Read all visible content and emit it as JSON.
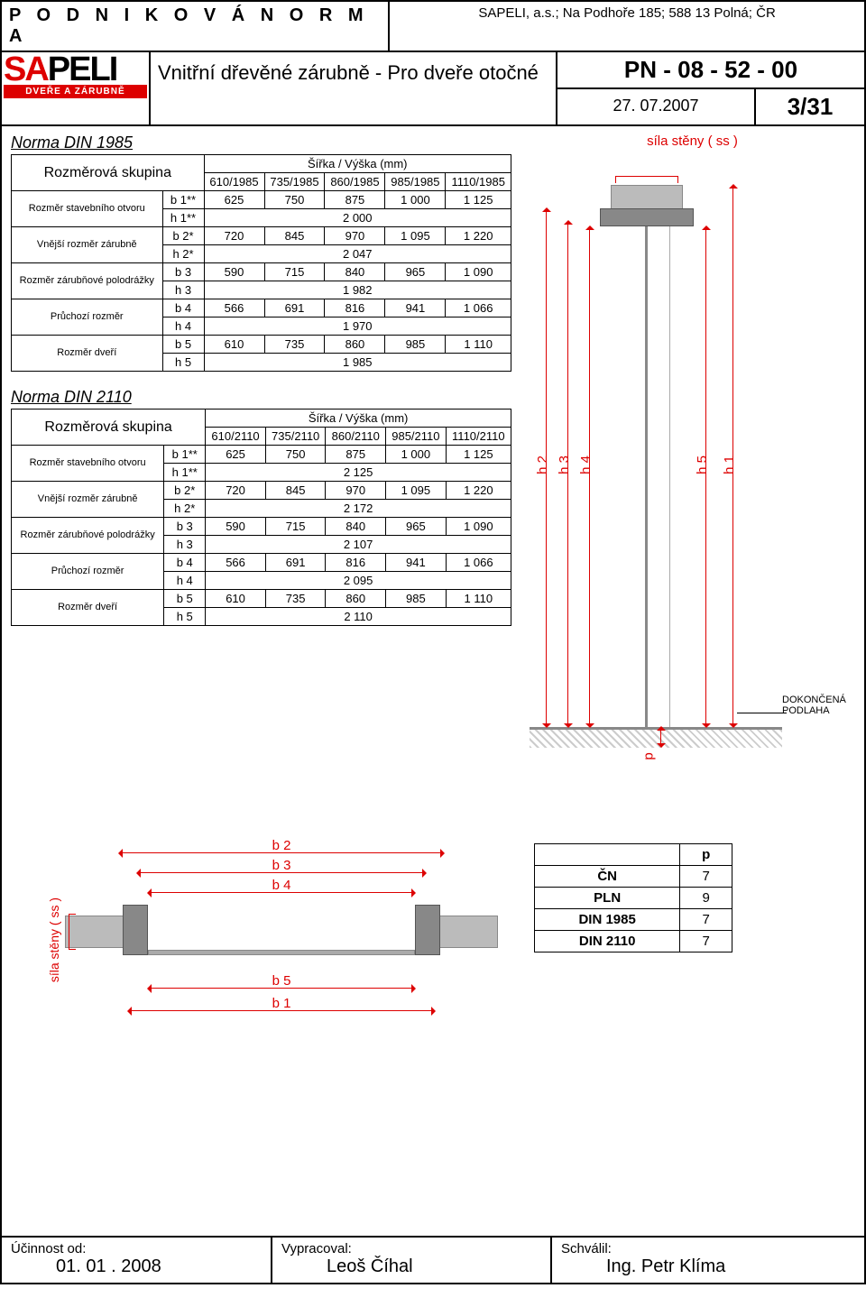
{
  "header": {
    "doc_type": "P O D N I K O V Á  N O R M A",
    "company": "SAPELI, a.s.; Na Podhoře 185; 588 13 Polná; ČR",
    "product_title": "Vnitřní dřevěné zárubně - Pro dveře otočné",
    "pn": "PN - 08 - 52 - 00",
    "date": "27. 07.2007",
    "page": "3/31",
    "logo_text": "SAPELI",
    "logo_sub": "DVEŘE A ZÁRUBNĚ"
  },
  "norms": [
    {
      "title": "Norma DIN 1985",
      "group_label": "Rozměrová skupina",
      "dim_header": "Šířka / Výška (mm)",
      "cols": [
        "610/1985",
        "735/1985",
        "860/1985",
        "985/1985",
        "1110/1985"
      ],
      "rows": [
        {
          "lbl": "Rozměr stavebního otvoru",
          "code": "b 1**",
          "vals": [
            "625",
            "750",
            "875",
            "1 000",
            "1 125"
          ]
        },
        {
          "lbl": "",
          "code": "h 1**",
          "span": "2 000"
        },
        {
          "lbl": "Vnější rozměr zárubně",
          "code": "b 2*",
          "vals": [
            "720",
            "845",
            "970",
            "1 095",
            "1 220"
          ]
        },
        {
          "lbl": "",
          "code": "h 2*",
          "span": "2 047"
        },
        {
          "lbl": "Rozměr zárubňové polodrážky",
          "code": "b 3",
          "vals": [
            "590",
            "715",
            "840",
            "965",
            "1 090"
          ]
        },
        {
          "lbl": "",
          "code": "h 3",
          "span": "1 982"
        },
        {
          "lbl": "Průchozí rozměr",
          "code": "b 4",
          "vals": [
            "566",
            "691",
            "816",
            "941",
            "1 066"
          ]
        },
        {
          "lbl": "",
          "code": "h 4",
          "span": "1 970"
        },
        {
          "lbl": "Rozměr dveří",
          "code": "b 5",
          "vals": [
            "610",
            "735",
            "860",
            "985",
            "1 110"
          ]
        },
        {
          "lbl": "",
          "code": "h 5",
          "span": "1 985"
        }
      ]
    },
    {
      "title": "Norma DIN 2110",
      "group_label": "Rozměrová skupina",
      "dim_header": "Šířka / Výška (mm)",
      "cols": [
        "610/2110",
        "735/2110",
        "860/2110",
        "985/2110",
        "1110/2110"
      ],
      "rows": [
        {
          "lbl": "Rozměr stavebního otvoru",
          "code": "b 1**",
          "vals": [
            "625",
            "750",
            "875",
            "1 000",
            "1 125"
          ]
        },
        {
          "lbl": "",
          "code": "h 1**",
          "span": "2 125"
        },
        {
          "lbl": "Vnější rozměr zárubně",
          "code": "b 2*",
          "vals": [
            "720",
            "845",
            "970",
            "1 095",
            "1 220"
          ]
        },
        {
          "lbl": "",
          "code": "h 2*",
          "span": "2 172"
        },
        {
          "lbl": "Rozměr zárubňové polodrážky",
          "code": "b 3",
          "vals": [
            "590",
            "715",
            "840",
            "965",
            "1 090"
          ]
        },
        {
          "lbl": "",
          "code": "h 3",
          "span": "2 107"
        },
        {
          "lbl": "Průchozí rozměr",
          "code": "b 4",
          "vals": [
            "566",
            "691",
            "816",
            "941",
            "1 066"
          ]
        },
        {
          "lbl": "",
          "code": "h 4",
          "span": "2 095"
        },
        {
          "lbl": "Rozměr dveří",
          "code": "b 5",
          "vals": [
            "610",
            "735",
            "860",
            "985",
            "1 110"
          ]
        },
        {
          "lbl": "",
          "code": "h 5",
          "span": "2 110"
        }
      ]
    }
  ],
  "side_diagram": {
    "top_label": "síla stěny ( ss )",
    "v_labels": [
      "h 2",
      "h 3",
      "h 4",
      "h 5",
      "h 1"
    ],
    "floor_label": "DOKONČENÁ PODLAHA",
    "p_label": "p",
    "colors": {
      "accent": "#d00",
      "wall": "#bbb",
      "frame": "#888"
    }
  },
  "plan_diagram": {
    "side_label": "síla stěny ( ss )",
    "top_labels": [
      "b 2",
      "b 3",
      "b 4"
    ],
    "bottom_labels": [
      "b 5",
      "b 1"
    ]
  },
  "p_table": {
    "header": "p",
    "rows": [
      {
        "k": "ČN",
        "v": "7"
      },
      {
        "k": "PLN",
        "v": "9"
      },
      {
        "k": "DIN 1985",
        "v": "7"
      },
      {
        "k": "DIN 2110",
        "v": "7"
      }
    ]
  },
  "footer": {
    "eff_lbl": "Účinnost od:",
    "eff_val": "01. 01  . 2008",
    "by_lbl": "Vypracoval:",
    "by_val": "Leoš Číhal",
    "appr_lbl": "Schválil:",
    "appr_val": "Ing. Petr Klíma"
  }
}
